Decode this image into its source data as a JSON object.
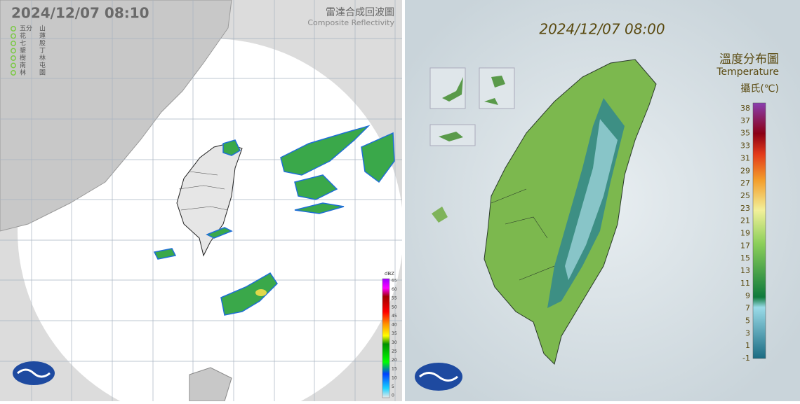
{
  "radar": {
    "timestamp": "2024/12/07  08:10",
    "title": "雷達合成回波圖",
    "subtitle": "Composite Reflectivity",
    "stations": [
      [
        "五分",
        "山"
      ],
      [
        "花",
        "蓮"
      ],
      [
        "七",
        "股"
      ],
      [
        "墾",
        "丁"
      ],
      [
        "樹",
        "林"
      ],
      [
        "南",
        "屯"
      ],
      [
        "林",
        "園"
      ]
    ],
    "scale_unit": "dBZ",
    "scale_ticks": [
      65,
      60,
      55,
      50,
      45,
      40,
      35,
      30,
      25,
      20,
      15,
      10,
      5,
      0
    ]
  },
  "temperature": {
    "timestamp": "2024/12/07 08:00",
    "title": "溫度分布圖",
    "subtitle": "Temperature",
    "unit": "攝氏(℃)",
    "scale_ticks": [
      38,
      37,
      35,
      33,
      31,
      29,
      27,
      25,
      23,
      21,
      19,
      17,
      15,
      13,
      11,
      9,
      7,
      5,
      3,
      1,
      -1
    ]
  }
}
